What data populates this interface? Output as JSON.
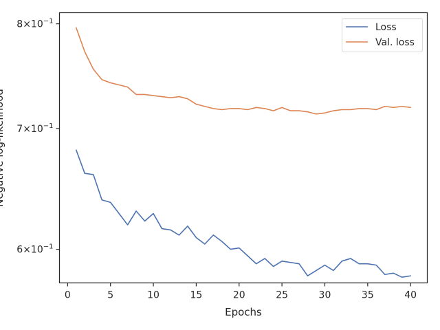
{
  "chart_data": {
    "type": "line",
    "xlabel": "Epochs",
    "ylabel": "Negative log-likelihood",
    "xlim": [
      -0.95,
      41.95
    ],
    "ylim": [
      0.5748,
      0.8114
    ],
    "yscale": "log",
    "grid": false,
    "legend_position": "top-right",
    "x_ticks": [
      0,
      5,
      10,
      15,
      20,
      25,
      30,
      35,
      40
    ],
    "y_ticks": [
      {
        "value": 0.6,
        "base": "6",
        "exp": "−1"
      },
      {
        "value": 0.7,
        "base": "7",
        "exp": "−1"
      },
      {
        "value": 0.8,
        "base": "8",
        "exp": "−1"
      }
    ],
    "x": [
      1,
      2,
      3,
      4,
      5,
      6,
      7,
      8,
      9,
      10,
      11,
      12,
      13,
      14,
      15,
      16,
      17,
      18,
      19,
      20,
      21,
      22,
      23,
      24,
      25,
      26,
      27,
      28,
      29,
      30,
      31,
      32,
      33,
      34,
      35,
      36,
      37,
      38,
      39,
      40
    ],
    "series": [
      {
        "name": "Loss",
        "color": "#4c72b0",
        "values": [
          0.681,
          0.661,
          0.66,
          0.639,
          0.637,
          0.628,
          0.619,
          0.63,
          0.622,
          0.628,
          0.616,
          0.615,
          0.611,
          0.618,
          0.609,
          0.604,
          0.611,
          0.606,
          0.6,
          0.601,
          0.595,
          0.589,
          0.593,
          0.587,
          0.591,
          0.59,
          0.589,
          0.58,
          0.584,
          0.588,
          0.584,
          0.591,
          0.593,
          0.589,
          0.589,
          0.588,
          0.581,
          0.582,
          0.579,
          0.58
        ]
      },
      {
        "name": "Val. loss",
        "color": "#dd8452",
        "values": [
          0.796,
          0.772,
          0.755,
          0.745,
          0.742,
          0.74,
          0.738,
          0.731,
          0.731,
          0.73,
          0.729,
          0.728,
          0.729,
          0.727,
          0.722,
          0.72,
          0.718,
          0.717,
          0.718,
          0.718,
          0.717,
          0.719,
          0.718,
          0.716,
          0.719,
          0.716,
          0.716,
          0.715,
          0.713,
          0.714,
          0.716,
          0.717,
          0.717,
          0.718,
          0.718,
          0.717,
          0.72,
          0.719,
          0.72,
          0.719
        ]
      }
    ]
  }
}
